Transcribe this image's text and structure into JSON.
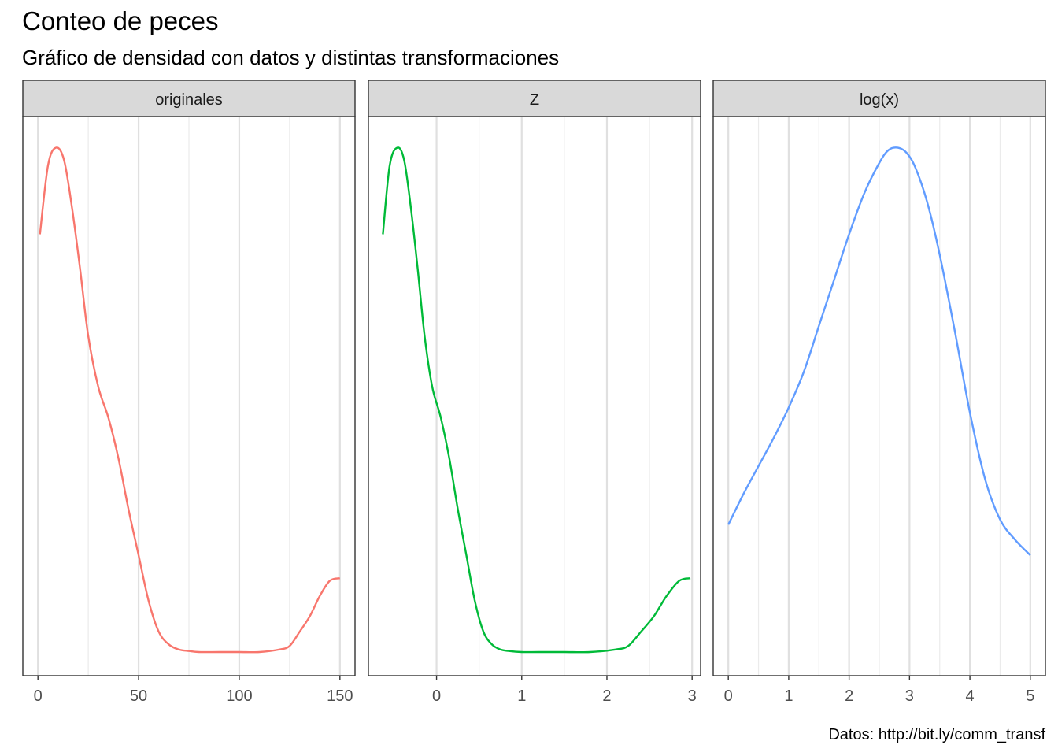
{
  "title": "Conteo de peces",
  "subtitle": "Gráfico de densidad con datos y distintas transformaciones",
  "caption": "Datos: http://bit.ly/comm_transf",
  "chart_data": [
    {
      "type": "line",
      "facet": "originales",
      "color": "#F8766D",
      "x_ticks": [
        0,
        50,
        100,
        150
      ],
      "x_tick_labels": [
        "0",
        "50",
        "100",
        "150"
      ],
      "xlim": [
        -7.5,
        157.5
      ],
      "grid": true,
      "x": [
        1,
        5,
        9,
        13,
        17,
        21,
        25,
        30,
        35,
        40,
        45,
        50,
        55,
        60,
        65,
        70,
        75,
        80,
        90,
        100,
        110,
        120,
        125,
        130,
        135,
        140,
        145,
        150
      ],
      "y": [
        0.82,
        0.955,
        0.99,
        0.965,
        0.87,
        0.75,
        0.62,
        0.52,
        0.46,
        0.38,
        0.28,
        0.19,
        0.1,
        0.04,
        0.015,
        0.005,
        0.002,
        0.0,
        0.0,
        0.0,
        0.0,
        0.005,
        0.012,
        0.04,
        0.07,
        0.11,
        0.14,
        0.145
      ]
    },
    {
      "type": "line",
      "facet": "Z",
      "color": "#00BA38",
      "x_ticks": [
        0,
        1,
        2,
        3
      ],
      "x_tick_labels": [
        "0",
        "1",
        "2",
        "3"
      ],
      "xlim": [
        -0.8,
        3.1
      ],
      "grid": true,
      "x": [
        -0.63,
        -0.55,
        -0.46,
        -0.38,
        -0.3,
        -0.22,
        -0.14,
        -0.05,
        0.05,
        0.15,
        0.25,
        0.35,
        0.45,
        0.55,
        0.65,
        0.75,
        0.85,
        1.0,
        1.2,
        1.5,
        1.8,
        2.1,
        2.25,
        2.4,
        2.55,
        2.7,
        2.85,
        2.98
      ],
      "y": [
        0.82,
        0.955,
        0.99,
        0.965,
        0.87,
        0.75,
        0.62,
        0.52,
        0.46,
        0.38,
        0.28,
        0.19,
        0.1,
        0.04,
        0.015,
        0.005,
        0.002,
        0.0,
        0.0,
        0.0,
        0.0,
        0.005,
        0.012,
        0.04,
        0.07,
        0.11,
        0.14,
        0.145
      ]
    },
    {
      "type": "line",
      "facet": "log(x)",
      "color": "#619CFF",
      "x_ticks": [
        0,
        1,
        2,
        3,
        4,
        5
      ],
      "x_tick_labels": [
        "0",
        "1",
        "2",
        "3",
        "4",
        "5"
      ],
      "xlim": [
        -0.25,
        5.25
      ],
      "grid": true,
      "x": [
        0,
        0.25,
        0.5,
        0.75,
        1.0,
        1.25,
        1.5,
        1.75,
        2.0,
        2.25,
        2.5,
        2.65,
        2.8,
        2.95,
        3.1,
        3.3,
        3.5,
        3.75,
        4.0,
        4.25,
        4.5,
        4.75,
        5.0
      ],
      "y": [
        0.25,
        0.31,
        0.365,
        0.42,
        0.48,
        0.55,
        0.64,
        0.73,
        0.82,
        0.9,
        0.96,
        0.985,
        0.99,
        0.98,
        0.95,
        0.88,
        0.78,
        0.63,
        0.47,
        0.34,
        0.26,
        0.22,
        0.19
      ]
    }
  ]
}
